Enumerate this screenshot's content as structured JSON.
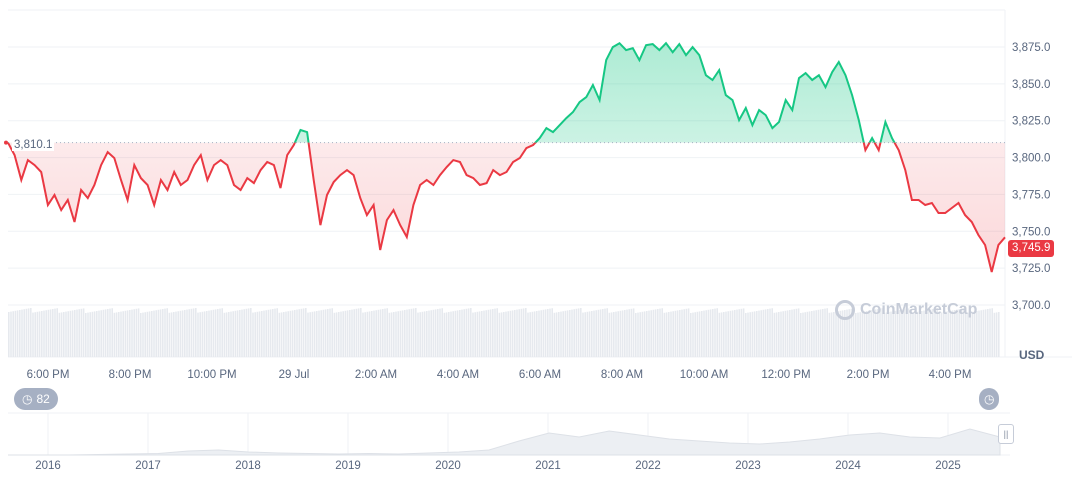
{
  "chart_data": {
    "type": "area",
    "currency": "USD",
    "baseline": 3810.1,
    "baseline_label": "3,810.1",
    "current_label": "3,745.9",
    "ylim": [
      3690,
      3895
    ],
    "yticks": [
      "3,700.0",
      "3,725.0",
      "3,750.0",
      "3,775.0",
      "3,800.0",
      "3,825.0",
      "3,850.0",
      "3,875.0"
    ],
    "ytick_values": [
      3700,
      3725,
      3750,
      3775,
      3800,
      3825,
      3850,
      3875
    ],
    "xticks": [
      "6:00 PM",
      "8:00 PM",
      "10:00 PM",
      "29 Jul",
      "2:00 AM",
      "4:00 AM",
      "6:00 AM",
      "8:00 AM",
      "10:00 AM",
      "12:00 PM",
      "2:00 PM",
      "4:00 PM"
    ],
    "x_start": "5:05 PM",
    "x_end": "5:25 PM",
    "colors": {
      "up": "#16c784",
      "down": "#ea3943",
      "grid": "#eff2f5",
      "volume": "#e6e9ee"
    },
    "values": [
      3810.1,
      3801.7,
      3784.8,
      3798.3,
      3794.9,
      3790.2,
      3767.8,
      3774.6,
      3764.4,
      3771.2,
      3756.3,
      3778,
      3772.5,
      3781.4,
      3794.9,
      3803.7,
      3799.7,
      3784.8,
      3771.2,
      3794.9,
      3786.1,
      3781.4,
      3767.8,
      3784.8,
      3778,
      3790.2,
      3781.4,
      3784.8,
      3794.9,
      3801.7,
      3784.8,
      3794.9,
      3798.3,
      3794.9,
      3781.4,
      3778,
      3786.1,
      3782.7,
      3791.5,
      3797,
      3794.9,
      3779.3,
      3801.7,
      3808.5,
      3818.7,
      3817.3,
      3784.8,
      3754.2,
      3774.6,
      3783.4,
      3788.1,
      3791.5,
      3788.1,
      3772.5,
      3761,
      3767.8,
      3737.3,
      3757.6,
      3764.4,
      3754.2,
      3746.1,
      3767.8,
      3781.4,
      3784.8,
      3781.4,
      3788.1,
      3793.6,
      3798.3,
      3797,
      3788.1,
      3786.1,
      3781.4,
      3782.7,
      3791.5,
      3788.1,
      3790.2,
      3797,
      3799.7,
      3806.4,
      3808.5,
      3813.2,
      3820,
      3817.3,
      3822,
      3826.8,
      3830.9,
      3837.6,
      3841,
      3849.2,
      3839,
      3866.1,
      3874.9,
      3877.6,
      3872.9,
      3874.2,
      3866.1,
      3876.3,
      3877,
      3872.9,
      3877.6,
      3871.5,
      3877,
      3869.5,
      3874.9,
      3869.5,
      3855.9,
      3852.6,
      3859.3,
      3842.4,
      3839,
      3825.4,
      3833.6,
      3822,
      3832.2,
      3828.8,
      3820,
      3824.1,
      3839,
      3832.2,
      3853.9,
      3857.3,
      3852.6,
      3855.9,
      3847.8,
      3858,
      3864.8,
      3855.9,
      3842.4,
      3825.4,
      3805.1,
      3813.2,
      3805.1,
      3824.1,
      3813.2,
      3805.1,
      3791.5,
      3771.2,
      3771.2,
      3767.8,
      3769.2,
      3762.4,
      3762.4,
      3765.8,
      3769.2,
      3761,
      3756.3,
      3747.5,
      3740.7,
      3722.4,
      3740.7,
      3745.9
    ]
  },
  "navigator": {
    "years": [
      "2016",
      "2017",
      "2018",
      "2019",
      "2020",
      "2021",
      "2022",
      "2023",
      "2024",
      "2025"
    ],
    "values": [
      0,
      0,
      0,
      0.5,
      1,
      1.5,
      4,
      5,
      3,
      2,
      1.5,
      1,
      1.5,
      1,
      2,
      3,
      5,
      14,
      22,
      18,
      24,
      20,
      16,
      14,
      12,
      11,
      13,
      16,
      20,
      22,
      18,
      17,
      26,
      18
    ]
  },
  "controls": {
    "history_count": "82",
    "history_icon": "history-icon",
    "reset_icon": "history-icon"
  },
  "watermark": "CoinMarketCap"
}
